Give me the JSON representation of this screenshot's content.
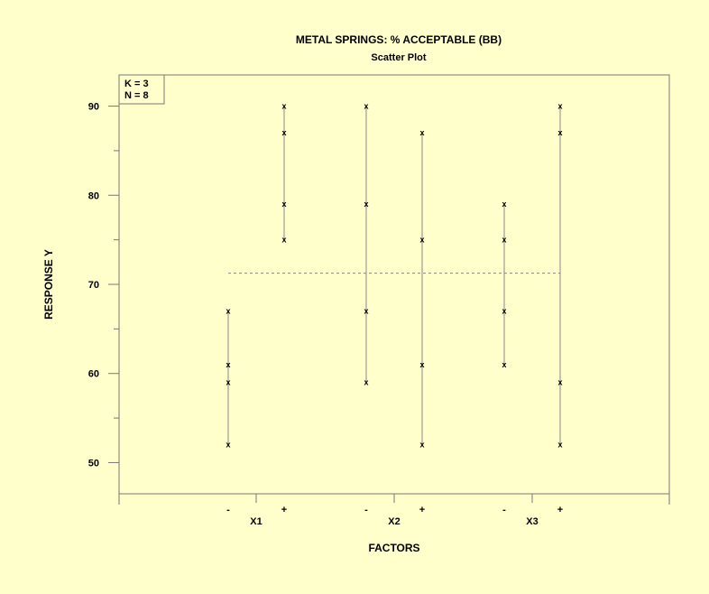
{
  "chart_data": {
    "type": "scatter",
    "title": "METAL SPRINGS: % ACCEPTABLE (BB)",
    "subtitle": "Scatter Plot",
    "xlabel": "FACTORS",
    "ylabel": "RESPONSE Y",
    "ylim": [
      46.5,
      93.5
    ],
    "yticks": [
      50,
      60,
      70,
      80,
      90
    ],
    "info_box": [
      "K = 3",
      "N = 8"
    ],
    "marker": "x",
    "grand_mean": 71.25,
    "factors": [
      {
        "name": "X1",
        "levels": [
          {
            "label": "-",
            "values": [
              67,
              61,
              59,
              52
            ]
          },
          {
            "label": "+",
            "values": [
              90,
              87,
              79,
              75
            ]
          }
        ]
      },
      {
        "name": "X2",
        "levels": [
          {
            "label": "-",
            "values": [
              90,
              79,
              67,
              59
            ]
          },
          {
            "label": "+",
            "values": [
              87,
              75,
              61,
              52
            ]
          }
        ]
      },
      {
        "name": "X3",
        "levels": [
          {
            "label": "-",
            "values": [
              79,
              75,
              67,
              61
            ]
          },
          {
            "label": "+",
            "values": [
              90,
              87,
              59,
              52
            ]
          }
        ]
      }
    ],
    "grid": false
  }
}
